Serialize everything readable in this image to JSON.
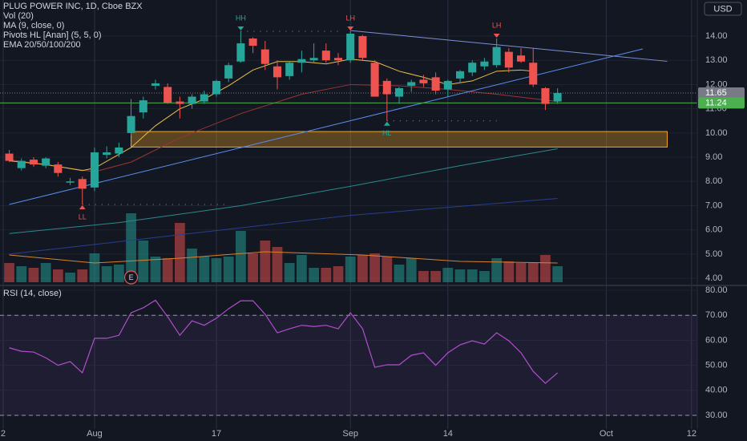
{
  "chart_data": [
    {
      "type": "candlestick",
      "title": "PLUG POWER INC, 1D, Cboe BZX",
      "legend_items": [
        "Vol (20)",
        "MA (9, close, 0)",
        "Pivots HL [Anan] (5, 5, 0)",
        "EMA 20/50/100/200"
      ],
      "currency": "USD",
      "x": [
        1,
        2,
        3,
        4,
        5,
        6,
        7,
        8,
        9,
        10,
        11,
        12,
        13,
        14,
        15,
        16,
        17,
        18,
        19,
        20,
        21,
        22,
        23,
        24,
        25,
        26,
        27,
        28,
        29,
        30,
        31,
        32,
        33,
        34,
        35,
        36,
        37,
        38,
        39,
        40,
        41,
        42,
        43,
        44,
        45,
        46
      ],
      "open": [
        9.15,
        8.55,
        8.9,
        8.65,
        8.7,
        7.95,
        8.1,
        7.75,
        9.1,
        9.15,
        10.0,
        10.85,
        11.95,
        11.9,
        11.3,
        11.2,
        11.3,
        11.6,
        12.25,
        12.95,
        13.9,
        13.45,
        12.75,
        12.35,
        12.9,
        13.0,
        13.4,
        13.1,
        13.0,
        14.0,
        12.9,
        12.15,
        11.5,
        11.95,
        12.2,
        12.3,
        11.8,
        12.25,
        12.5,
        12.75,
        12.8,
        13.35,
        13.2,
        12.9,
        11.85,
        11.3
      ],
      "high": [
        9.3,
        8.95,
        9.0,
        9.0,
        8.8,
        8.15,
        8.2,
        9.4,
        9.45,
        9.6,
        11.4,
        11.5,
        12.2,
        12.05,
        11.5,
        11.6,
        11.75,
        12.2,
        12.9,
        14.2,
        13.95,
        13.8,
        13.0,
        12.95,
        13.4,
        13.7,
        13.7,
        13.3,
        14.2,
        14.05,
        13.0,
        12.25,
        11.9,
        12.2,
        12.4,
        12.5,
        12.2,
        12.6,
        13.0,
        13.1,
        13.9,
        13.5,
        13.5,
        13.5,
        11.9,
        11.85
      ],
      "low": [
        8.8,
        8.45,
        8.6,
        8.55,
        8.2,
        7.85,
        7.05,
        7.6,
        8.95,
        9.0,
        9.9,
        10.6,
        11.8,
        11.2,
        10.6,
        11.0,
        11.2,
        11.5,
        12.1,
        12.9,
        13.3,
        12.6,
        11.8,
        12.2,
        12.5,
        12.9,
        12.9,
        12.8,
        12.9,
        13.0,
        11.5,
        10.5,
        11.2,
        11.7,
        11.9,
        11.6,
        11.5,
        12.1,
        12.35,
        12.6,
        12.7,
        12.5,
        12.9,
        11.9,
        10.95,
        11.2
      ],
      "close": [
        8.85,
        8.85,
        8.7,
        8.95,
        8.35,
        8.0,
        7.7,
        9.2,
        9.2,
        9.4,
        10.7,
        11.35,
        12.05,
        11.25,
        11.2,
        11.5,
        11.6,
        12.15,
        12.8,
        13.7,
        13.6,
        12.85,
        12.3,
        12.9,
        13.05,
        13.1,
        13.0,
        13.0,
        14.1,
        13.1,
        11.5,
        11.6,
        11.85,
        12.1,
        12.05,
        11.75,
        12.15,
        12.55,
        12.9,
        12.95,
        13.55,
        12.7,
        12.95,
        12.0,
        11.2,
        11.65
      ],
      "up_color": "#26a69a",
      "down_color": "#ef5350",
      "xlim": [
        0.24,
        57.47
      ],
      "ylim": [
        3.74,
        15.49
      ],
      "yticks": [
        {
          "value": 4,
          "label": "4.00"
        },
        {
          "value": 5,
          "label": "5.00"
        },
        {
          "value": 6,
          "label": "6.00"
        },
        {
          "value": 7,
          "label": "7.00"
        },
        {
          "value": 8,
          "label": "8.00"
        },
        {
          "value": 9,
          "label": "9.00"
        },
        {
          "value": 10,
          "label": "10.00"
        },
        {
          "value": 11,
          "label": "11.00"
        },
        {
          "value": 12,
          "label": "12.00"
        },
        {
          "value": 13,
          "label": "13.00"
        },
        {
          "value": 14,
          "label": "14.00"
        }
      ],
      "xticks": [
        {
          "value": 0.5,
          "label": "2"
        },
        {
          "value": 8,
          "label": "Aug"
        },
        {
          "value": 18,
          "label": "17"
        },
        {
          "value": 29,
          "label": "Sep"
        },
        {
          "value": 37,
          "label": "14"
        },
        {
          "value": 50,
          "label": "Oct"
        },
        {
          "value": 57,
          "label": "12"
        }
      ],
      "grid": true,
      "volume": {
        "values": [
          12,
          10,
          9,
          12,
          8,
          6,
          8,
          18,
          10,
          11,
          43,
          26,
          16,
          15,
          37,
          21,
          16,
          15,
          16,
          32,
          18,
          26,
          22,
          12,
          17,
          9,
          9,
          10,
          16,
          17,
          18,
          16,
          11,
          15,
          7,
          7,
          9,
          8,
          8,
          7,
          15,
          13,
          12,
          12,
          17,
          10
        ],
        "ylim": [
          0,
          100
        ],
        "ma": {
          "x": [
            1,
            8,
            15,
            22,
            30,
            38,
            46
          ],
          "values": [
            17,
            12,
            15,
            19,
            17,
            13,
            12
          ],
          "color": "#d9822b"
        }
      },
      "overlays": [
        {
          "x": [
            1,
            10,
            20,
            29,
            38,
            46
          ],
          "values": [
            5.85,
            6.3,
            7.0,
            7.8,
            8.65,
            9.35
          ],
          "color": "#2b8a8a",
          "width": 1
        },
        {
          "x": [
            1,
            15,
            29,
            46
          ],
          "values": [
            5.0,
            5.8,
            6.6,
            7.3
          ],
          "color": "#283f8f",
          "width": 1
        },
        {
          "x": [
            1,
            8,
            11,
            15,
            20,
            25,
            29,
            33,
            37,
            41,
            46
          ],
          "values": [
            8.9,
            8.4,
            8.8,
            9.8,
            10.8,
            11.6,
            12.0,
            11.95,
            11.8,
            11.6,
            11.3
          ],
          "color": "#9c3434",
          "width": 1
        },
        {
          "x": [
            1,
            4,
            7,
            8,
            11,
            13,
            15,
            17,
            19,
            21,
            23,
            25,
            27,
            29,
            31,
            33,
            35,
            37,
            39,
            41,
            43,
            44
          ],
          "values": [
            8.85,
            8.7,
            8.45,
            8.55,
            9.4,
            10.3,
            11.0,
            11.4,
            11.95,
            12.6,
            12.95,
            12.95,
            12.85,
            13.05,
            12.95,
            12.55,
            12.3,
            12.0,
            12.15,
            12.55,
            12.6,
            12.55
          ],
          "color": "#e5c04b",
          "width": 1
        },
        {
          "x": [
            1,
            53
          ],
          "values": [
            7.05,
            13.47
          ],
          "color": "#5b8ef0",
          "width": 1
        },
        {
          "x": [
            29,
            55
          ],
          "values": [
            14.23,
            12.96
          ],
          "color": "#7d8fd6",
          "width": 1
        }
      ],
      "zone": {
        "x": [
          11,
          55
        ],
        "prices": [
          9.42,
          10.06
        ],
        "color": "#f5a623"
      },
      "price_lines": [
        {
          "value": 11.65,
          "color": "#787b86"
        },
        {
          "value": 11.24,
          "color": "#4caf50"
        }
      ],
      "pivots": [
        {
          "label": "HH",
          "x": 20,
          "price": 14.2,
          "x_end": 28,
          "color": "#26a69a"
        },
        {
          "label": "LH",
          "x": 29,
          "price": 14.2,
          "x_end": 29,
          "color": "#ef5350"
        },
        {
          "label": "LH",
          "x": 41,
          "price": 13.9,
          "x_end": 41,
          "color": "#ef5350"
        },
        {
          "label": "LL",
          "x": 7,
          "price": 7.05,
          "x_end": 19,
          "color": "#ef5350"
        },
        {
          "label": "HL",
          "x": 32,
          "price": 10.5,
          "x_end": 41,
          "color": "#26a69a"
        }
      ],
      "earnings": {
        "x": 11,
        "label": "E"
      }
    },
    {
      "type": "line",
      "title": "RSI (14, close)",
      "x": [
        1,
        2,
        3,
        4,
        5,
        6,
        7,
        8,
        9,
        10,
        11,
        12,
        13,
        14,
        15,
        16,
        17,
        18,
        19,
        20,
        21,
        22,
        23,
        24,
        25,
        26,
        27,
        28,
        29,
        30,
        31,
        32,
        33,
        34,
        35,
        36,
        37,
        38,
        39,
        40,
        41,
        42,
        43,
        44,
        45,
        46
      ],
      "values": [
        57,
        55.6,
        55.3,
        53,
        50,
        51.5,
        47,
        60.8,
        60.8,
        62,
        71,
        73,
        76,
        69.4,
        62,
        67.8,
        66,
        68.8,
        72.6,
        75.8,
        75.8,
        70.4,
        63,
        64.6,
        66,
        65.5,
        66,
        64.6,
        71,
        64.6,
        49.2,
        50.2,
        50.2,
        54,
        55,
        50,
        55,
        58.2,
        59.8,
        58.5,
        63,
        59.8,
        55,
        47.6,
        42.8,
        47
      ],
      "color": "#b04fcc",
      "xlim": [
        0.24,
        57.47
      ],
      "ylim": [
        24.55,
        81.6
      ],
      "yticks": [
        {
          "value": 30,
          "label": "30.00"
        },
        {
          "value": 40,
          "label": "40.00"
        },
        {
          "value": 50,
          "label": "50.00"
        },
        {
          "value": 60,
          "label": "60.00"
        },
        {
          "value": 70,
          "label": "70.00"
        },
        {
          "value": 80,
          "label": "80.00"
        }
      ],
      "band": [
        30,
        70
      ],
      "band_color": "#7e57c2"
    }
  ]
}
